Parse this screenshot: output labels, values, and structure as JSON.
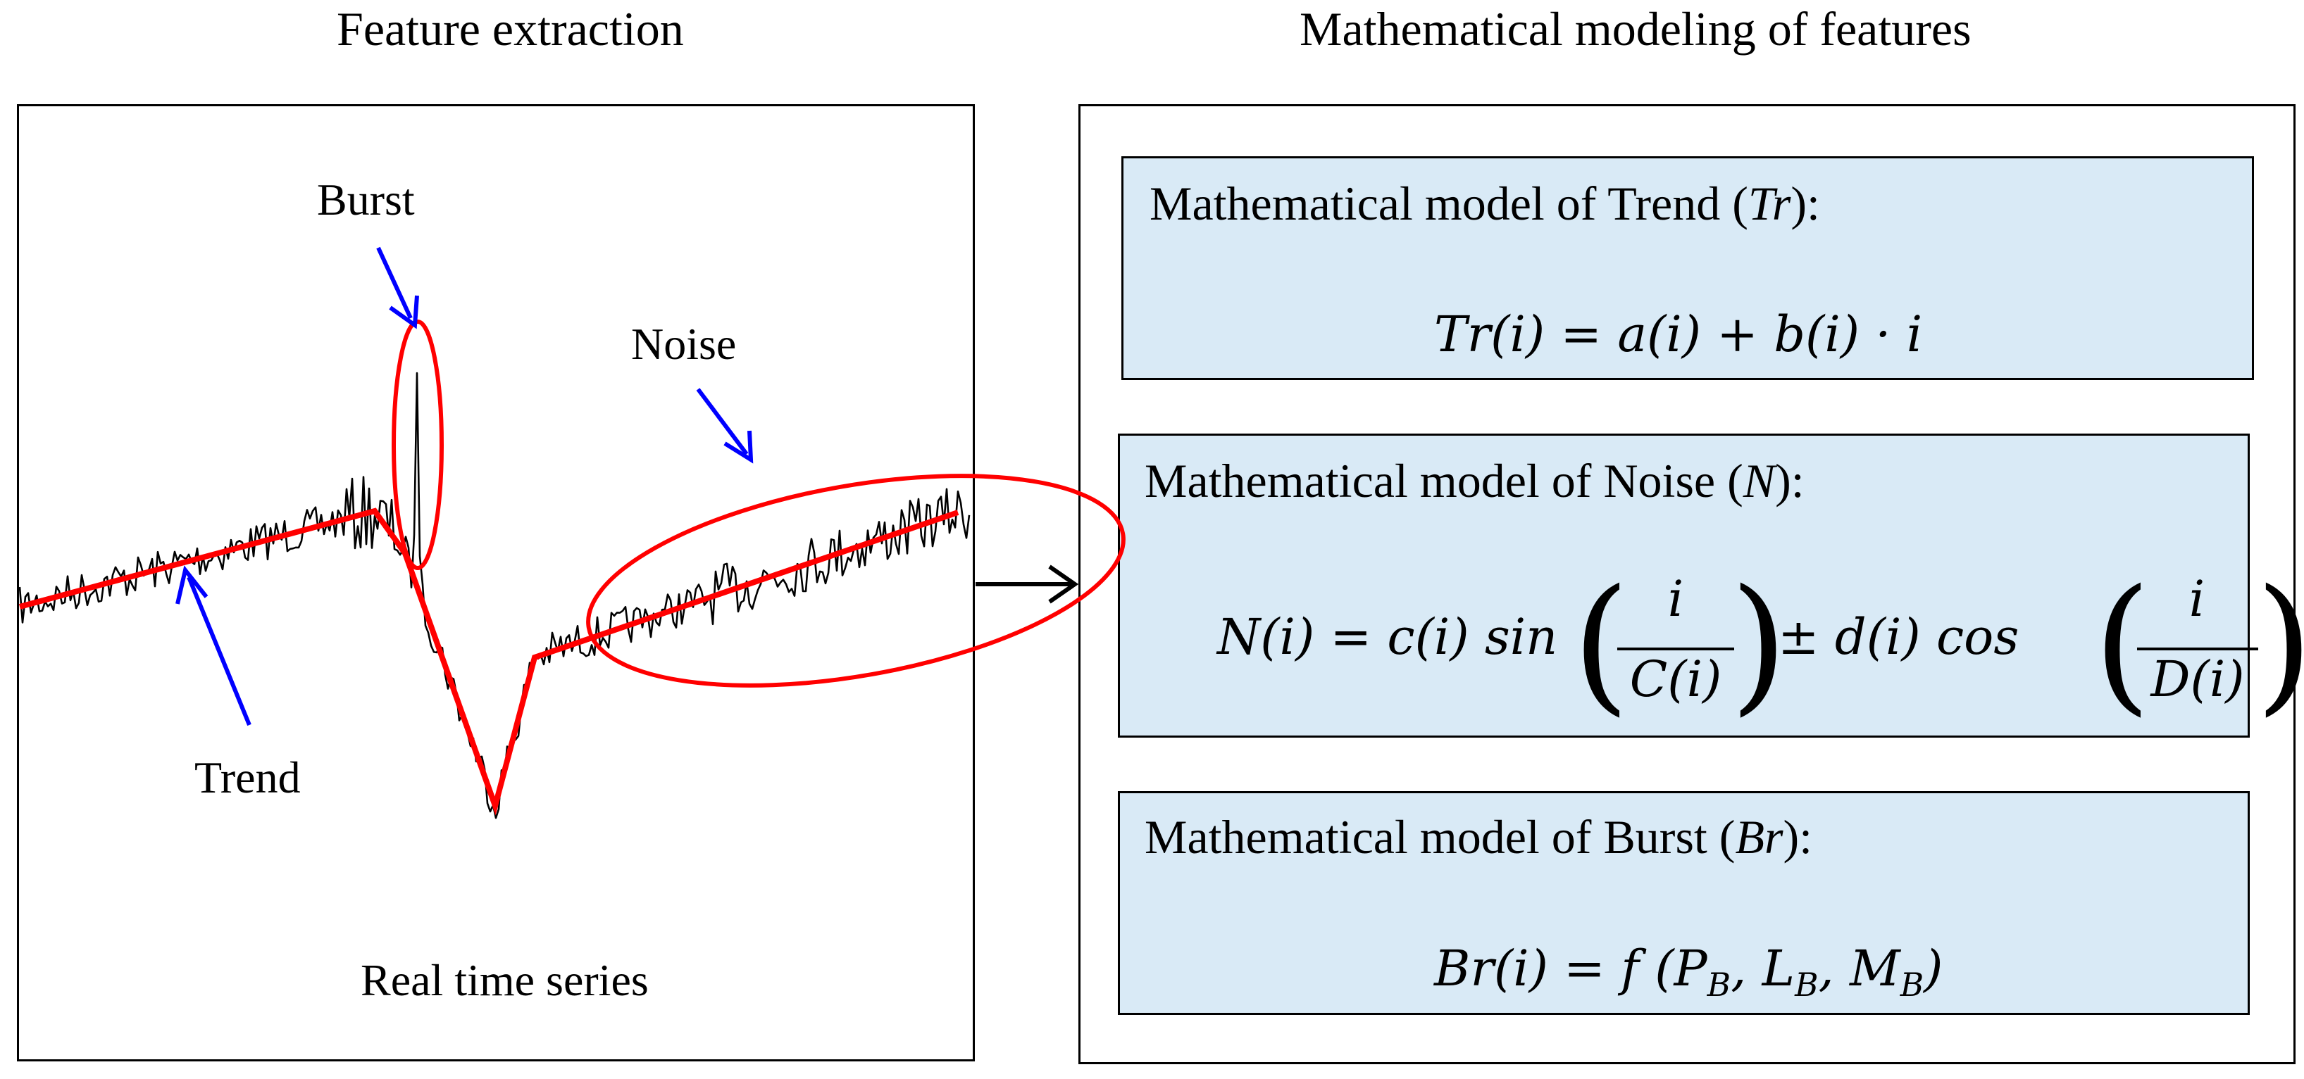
{
  "headings": {
    "left": "Feature extraction",
    "right": "Mathematical modeling of features"
  },
  "left_panel": {
    "caption": "Real time series",
    "labels": {
      "burst": "Burst",
      "noise": "Noise",
      "trend": "Trend"
    }
  },
  "models": {
    "trend": {
      "prefix": "Mathematical model of Trend (",
      "symbol": "Tr",
      "suffix": "):"
    },
    "noise": {
      "prefix": "Mathematical model of Noise (",
      "symbol": "N",
      "suffix": "):"
    },
    "burst": {
      "prefix": "Mathematical model of Burst (",
      "symbol": "Br",
      "suffix": "):"
    }
  },
  "formulas": {
    "trend": "Tr(i) = a(i) + b(i) · i",
    "noise": {
      "lhs": "N(i) = c(i) sin",
      "frac1_num": "i",
      "frac1_den": "C(i)",
      "mid": "± d(i) cos",
      "frac2_num": "i",
      "frac2_den": "D(i)"
    },
    "burst": "Br(i) = f (P_B, L_B, M_B)"
  },
  "colors": {
    "model_fill": "#d9eaf6",
    "trend_line": "#ff0000",
    "annotation_arrow": "#0000ff",
    "signal": "#000000"
  }
}
